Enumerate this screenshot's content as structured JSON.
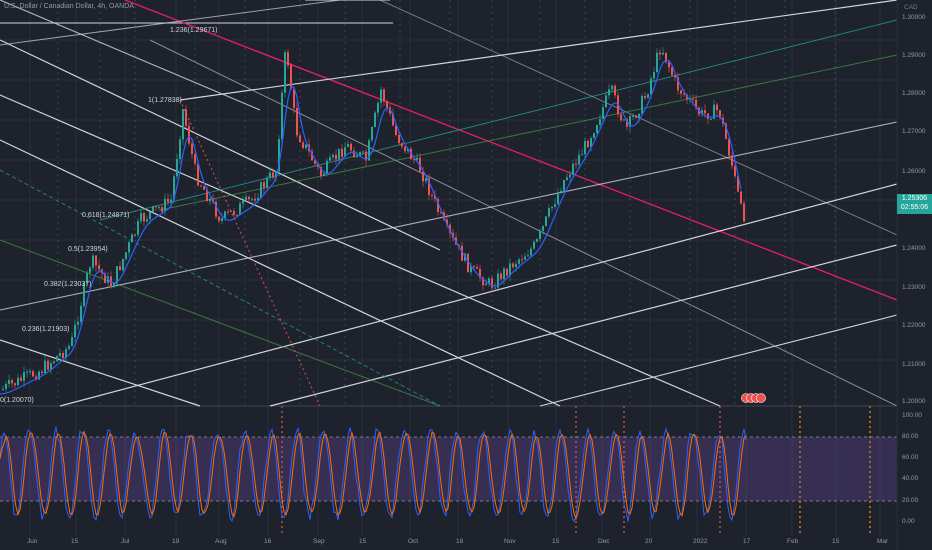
{
  "window": {
    "title": "U.S. Dollar / Canadian Dollar, 4h, OANDA",
    "currency": "CAD"
  },
  "fib_levels": [
    {
      "label": "1.236(1.29671)"
    },
    {
      "label": "1(1.27838)"
    },
    {
      "label": "0.618(1.24871)"
    },
    {
      "label": "0.5(1.23954)"
    },
    {
      "label": "0.382(1.23037)"
    },
    {
      "label": "0.236(1.21903)"
    },
    {
      "label": "0(1.20070)"
    }
  ],
  "price_axis": {
    "ticks": [
      "1.30000",
      "1.29000",
      "1.28000",
      "1.27000",
      "1.26000",
      "1.25000",
      "1.24000",
      "1.23000",
      "1.22000",
      "1.21000",
      "1.20000"
    ],
    "current_price": "1.25306",
    "countdown": "02:55:06"
  },
  "oscillator_axis": {
    "ticks": [
      "100.00",
      "80.00",
      "60.00",
      "40.00",
      "20.00",
      "0.00"
    ]
  },
  "time_axis": {
    "ticks": [
      "Jun",
      "15",
      "Jul",
      "19",
      "Aug",
      "16",
      "Sep",
      "15",
      "Oct",
      "18",
      "Nov",
      "15",
      "Dec",
      "20",
      "2022",
      "17",
      "Feb",
      "15",
      "Mar"
    ]
  },
  "colors": {
    "background": "#1e222d",
    "candle_up": "#26a69a",
    "candle_down": "#ef5350",
    "ma_line": "#2962ff",
    "channel_lines": "#d1d4dc",
    "pitchfork_median": "#e91e63",
    "fib_line": "#4caf50",
    "stoch_band": "#7e57c2",
    "stoch_k": "#2962ff",
    "stoch_d": "#ff6d00",
    "badge": "#26a69a"
  },
  "icons": [
    "event-marker-icon"
  ]
}
